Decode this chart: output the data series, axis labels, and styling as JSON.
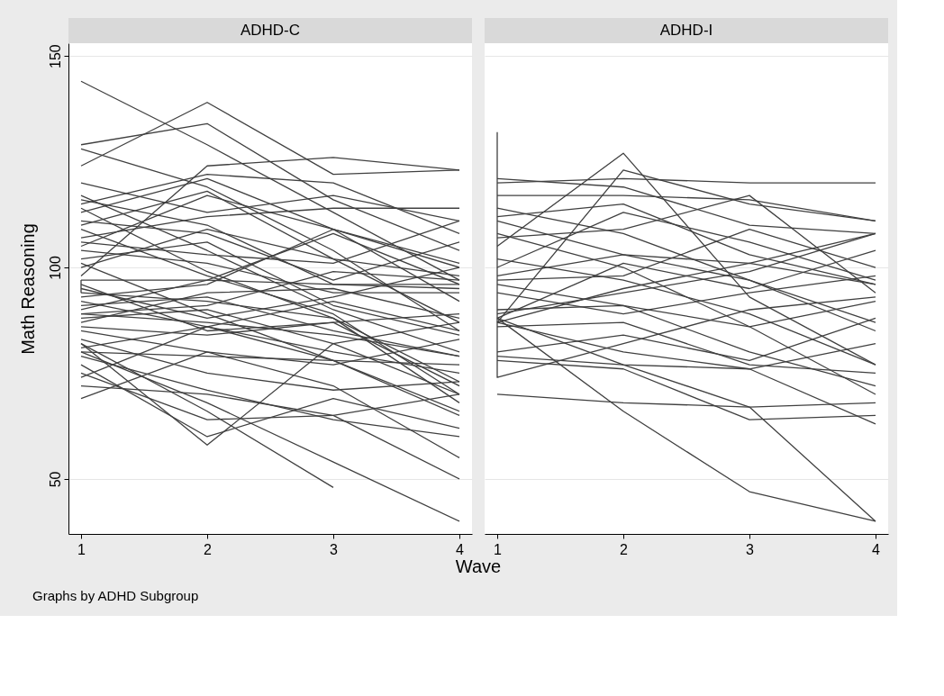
{
  "chart_data": [
    {
      "type": "line",
      "title": "ADHD-C",
      "xlabel": "Wave",
      "ylabel": "Math Reasoning",
      "annotations": [
        "Graphs by ADHD Subgroup"
      ],
      "x": [
        1,
        2,
        3,
        4
      ],
      "xlim": [
        0.9,
        4.1
      ],
      "xticks": [
        1,
        2,
        3,
        4
      ],
      "ylim": [
        37,
        153
      ],
      "yticks": [
        50,
        100,
        150
      ],
      "grid": "y",
      "series": [
        {
          "color": "#404040",
          "values": [
            144,
            129,
            113,
            97
          ]
        },
        {
          "color": "#404040",
          "values": [
            124,
            139,
            122,
            123
          ]
        },
        {
          "color": "#404040",
          "values": [
            98,
            124,
            126,
            123
          ]
        },
        {
          "color": "#404040",
          "values": [
            129,
            134,
            116,
            104
          ]
        },
        {
          "color": "#404040",
          "values": [
            128,
            119,
            104,
            85
          ]
        },
        {
          "color": "#404040",
          "values": [
            115,
            122,
            120,
            108
          ]
        },
        {
          "color": "#404040",
          "values": [
            120,
            113,
            117,
            111
          ]
        },
        {
          "color": "#404040",
          "values": [
            113,
            121,
            109,
            100
          ]
        },
        {
          "color": "#404040",
          "values": [
            110,
            118,
            102,
            87
          ]
        },
        {
          "color": "#404040",
          "values": [
            107,
            112,
            114,
            114
          ]
        },
        {
          "color": "#404040",
          "values": [
            116,
            110,
            96,
            96
          ]
        },
        {
          "color": "#404040",
          "values": [
            105,
            117,
            109,
            92
          ]
        },
        {
          "color": "#404040",
          "values": [
            111,
            108,
            97,
            106
          ]
        },
        {
          "color": "#404040",
          "values": [
            100,
            109,
            102,
            98
          ]
        },
        {
          "color": "#404040",
          "values": [
            106,
            103,
            101,
            111
          ]
        },
        {
          "color": "#404040",
          "values": [
            114,
            99,
            88,
            73
          ]
        },
        {
          "color": "#404040",
          "values": [
            102,
            106,
            91,
            84
          ]
        },
        {
          "color": "#404040",
          "values": [
            97,
            97,
            96,
            95
          ]
        },
        {
          "color": "#404040",
          "values": [
            93,
            96,
            109,
            101
          ]
        },
        {
          "color": "#404040",
          "values": [
            109,
            98,
            89,
            70
          ]
        },
        {
          "color": "#404040",
          "values": [
            95,
            88,
            93,
            100
          ]
        },
        {
          "color": "#404040",
          "values": [
            91,
            93,
            85,
            79
          ]
        },
        {
          "color": "#404040",
          "values": [
            89,
            91,
            99,
            97
          ]
        },
        {
          "color": "#404040",
          "values": [
            88,
            90,
            82,
            87
          ]
        },
        {
          "color": "#404040",
          "values": [
            96,
            85,
            87,
            72
          ]
        },
        {
          "color": "#404040",
          "values": [
            87,
            94,
            95,
            88
          ]
        },
        {
          "color": "#404040",
          "values": [
            92,
            86,
            80,
            75
          ]
        },
        {
          "color": "#404040",
          "values": [
            90,
            97,
            108,
            96
          ]
        },
        {
          "color": "#404040",
          "values": [
            86,
            84,
            87,
            89
          ]
        },
        {
          "color": "#404040",
          "values": [
            94,
            92,
            88,
            68
          ]
        },
        {
          "color": "#404040",
          "values": [
            85,
            80,
            77,
            83
          ]
        },
        {
          "color": "#404040",
          "values": [
            89,
            87,
            84,
            79
          ]
        },
        {
          "color": "#404040",
          "values": [
            80,
            79,
            78,
            77
          ]
        },
        {
          "color": "#404040",
          "values": [
            81,
            86,
            92,
            85
          ]
        },
        {
          "color": "#404040",
          "values": [
            79,
            71,
            64,
            60
          ]
        },
        {
          "color": "#404040",
          "values": [
            82,
            66,
            48,
            null
          ]
        },
        {
          "color": "#404040",
          "values": [
            80,
            68,
            54,
            40
          ]
        },
        {
          "color": "#404040",
          "values": [
            82,
            58,
            82,
            70
          ]
        },
        {
          "color": "#404040",
          "values": [
            75,
            64,
            65,
            70
          ]
        },
        {
          "color": "#404040",
          "values": [
            72,
            70,
            65,
            50
          ]
        },
        {
          "color": "#404040",
          "values": [
            69,
            80,
            72,
            55
          ]
        },
        {
          "color": "#404040",
          "values": [
            77,
            60,
            69,
            62
          ]
        },
        {
          "color": "#404040",
          "values": [
            74,
            86,
            78,
            66
          ]
        },
        {
          "color": "#404040",
          "values": [
            104,
            101,
            94,
            94
          ]
        },
        {
          "color": "#404040",
          "values": [
            101,
            89,
            78,
            65
          ]
        },
        {
          "color": "#404040",
          "values": [
            117,
            104,
            90,
            80
          ]
        },
        {
          "color": "#404040",
          "values": [
            83,
            75,
            71,
            73
          ]
        },
        {
          "color": "#404040",
          "x": [
            1,
            1
          ],
          "values": [
            97,
            94
          ]
        }
      ]
    },
    {
      "type": "line",
      "title": "ADHD-I",
      "x": [
        1,
        2,
        3,
        4
      ],
      "xlim": [
        0.9,
        4.1
      ],
      "xticks": [
        1,
        2,
        3,
        4
      ],
      "ylim": [
        37,
        153
      ],
      "yticks": [
        50,
        100,
        150
      ],
      "grid": "y",
      "tick_labels": "x",
      "series": [
        {
          "color": "#404040",
          "values": [
            120,
            121,
            120,
            120
          ]
        },
        {
          "color": "#404040",
          "values": [
            105,
            127,
            93,
            77
          ]
        },
        {
          "color": "#404040",
          "values": [
            87,
            123,
            115,
            111
          ]
        },
        {
          "color": "#404040",
          "values": [
            121,
            119,
            110,
            108
          ]
        },
        {
          "color": "#404040",
          "values": [
            117,
            117,
            116,
            111
          ]
        },
        {
          "color": "#404040",
          "values": [
            112,
            115,
            103,
            96
          ]
        },
        {
          "color": "#404040",
          "values": [
            107,
            109,
            117,
            94
          ]
        },
        {
          "color": "#404040",
          "values": [
            100,
            113,
            106,
            97
          ]
        },
        {
          "color": "#404040",
          "values": [
            111,
            103,
            97,
            85
          ]
        },
        {
          "color": "#404040",
          "values": [
            97,
            98,
            109,
            100
          ]
        },
        {
          "color": "#404040",
          "values": [
            98,
            103,
            101,
            108
          ]
        },
        {
          "color": "#404040",
          "values": [
            88,
            101,
            95,
            104
          ]
        },
        {
          "color": "#404040",
          "values": [
            89,
            94,
            99,
            108
          ]
        },
        {
          "color": "#404040",
          "values": [
            94,
            89,
            94,
            98
          ]
        },
        {
          "color": "#404040",
          "values": [
            87,
            95,
            101,
            96
          ]
        },
        {
          "color": "#404040",
          "values": [
            90,
            91,
            86,
            92
          ]
        },
        {
          "color": "#404040",
          "values": [
            102,
            97,
            89,
            77
          ]
        },
        {
          "color": "#404040",
          "values": [
            79,
            77,
            76,
            82
          ]
        },
        {
          "color": "#404040",
          "values": [
            80,
            84,
            78,
            88
          ]
        },
        {
          "color": "#404040",
          "values": [
            88,
            66,
            47,
            40
          ]
        },
        {
          "color": "#404040",
          "values": [
            88,
            77,
            67,
            40
          ]
        },
        {
          "color": "#404040",
          "values": [
            70,
            68,
            67,
            68
          ]
        },
        {
          "color": "#404040",
          "values": [
            78,
            76,
            64,
            65
          ]
        },
        {
          "color": "#404040",
          "values": [
            87,
            80,
            76,
            63
          ]
        },
        {
          "color": "#404040",
          "values": [
            108,
            100,
            86,
            70
          ]
        },
        {
          "color": "#404040",
          "values": [
            114,
            108,
            97,
            87
          ]
        },
        {
          "color": "#404040",
          "values": [
            96,
            91,
            80,
            72
          ]
        },
        {
          "color": "#404040",
          "values": [
            86,
            87,
            77,
            75
          ]
        },
        {
          "color": "#404040",
          "x": [
            1,
            1,
            2,
            3,
            4
          ],
          "values": [
            132,
            74,
            82,
            90,
            93
          ]
        }
      ]
    }
  ]
}
